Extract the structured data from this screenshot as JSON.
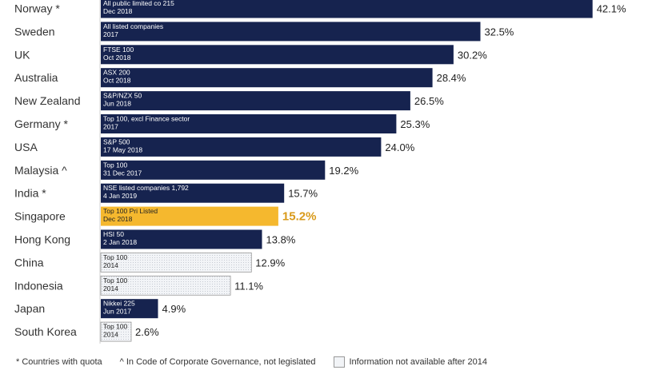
{
  "chart_data": {
    "type": "bar",
    "orientation": "horizontal",
    "title": "",
    "xlabel": "",
    "ylabel": "",
    "value_suffix": "%",
    "colors": {
      "standard": "#16234f",
      "highlight": "#f5b82e",
      "highlight_text": "#d99a1a",
      "na_fill": "#f2f4f7",
      "na_border": "#999999"
    },
    "categories": [
      "Norway *",
      "Sweden",
      "UK",
      "Australia",
      "New Zealand",
      "Germany *",
      "USA",
      "Malaysia ^",
      "India *",
      "Singapore",
      "Hong Kong",
      "China",
      "Indonesia",
      "Japan",
      "South Korea"
    ],
    "values": [
      42.1,
      32.5,
      30.2,
      28.4,
      26.5,
      25.3,
      24.0,
      19.2,
      15.7,
      15.2,
      13.8,
      12.9,
      11.1,
      4.9,
      2.6
    ],
    "value_labels": [
      "42.1%",
      "32.5%",
      "30.2%",
      "28.4%",
      "26.5%",
      "25.3%",
      "24.0%",
      "19.2%",
      "15.7%",
      "15.2%",
      "13.8%",
      "12.9%",
      "11.1%",
      "4.9%",
      "2.6%"
    ],
    "bar_notes": [
      [
        "All public limited co 215",
        "Dec 2018"
      ],
      [
        "All listed companies",
        "2017"
      ],
      [
        "FTSE 100",
        "Oct 2018"
      ],
      [
        "ASX 200",
        "Oct 2018"
      ],
      [
        "S&P/NZX 50",
        "Jun 2018"
      ],
      [
        "Top 100, excl Finance sector",
        "2017"
      ],
      [
        "S&P 500",
        "17 May 2018"
      ],
      [
        "Top 100",
        "31 Dec 2017"
      ],
      [
        "NSE listed companies 1,792",
        "4 Jan 2019"
      ],
      [
        "Top 100 Pri Listed",
        "Dec 2018"
      ],
      [
        "HSI 50",
        "2 Jan 2018"
      ],
      [
        "Top 100",
        "2014"
      ],
      [
        "Top 100",
        "2014"
      ],
      [
        "Nikkei 225",
        "Jun 2017"
      ],
      [
        "Top 100",
        "2014"
      ]
    ],
    "styles": [
      "standard",
      "standard",
      "standard",
      "standard",
      "standard",
      "standard",
      "standard",
      "standard",
      "standard",
      "highlight",
      "standard",
      "na",
      "na",
      "standard",
      "na"
    ]
  },
  "legend": {
    "quota": "* Countries with quota",
    "code": "^ In Code of Corporate Governance, not legislated",
    "na": "Information not available after 2014"
  }
}
